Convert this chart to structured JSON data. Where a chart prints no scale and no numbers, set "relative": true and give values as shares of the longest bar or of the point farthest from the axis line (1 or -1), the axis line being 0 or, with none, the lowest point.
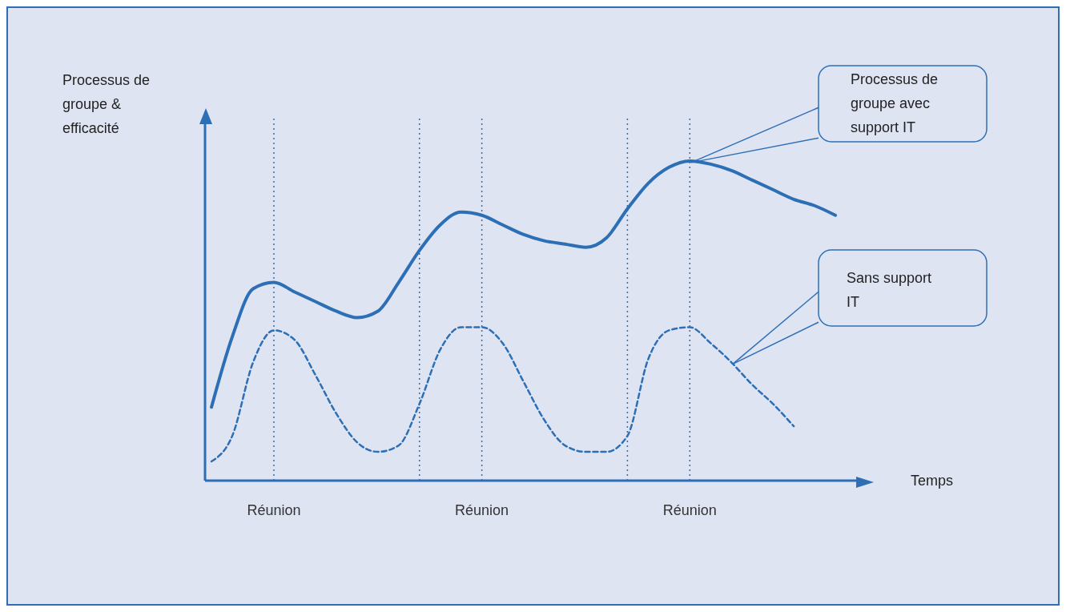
{
  "chart_data": {
    "type": "line",
    "relative": true,
    "xlabel": "Temps",
    "ylabel": "Processus de groupe & efficacité",
    "marker": "none",
    "categories": [
      null,
      null,
      null,
      "Réunion",
      null,
      null,
      null,
      null,
      null,
      null,
      null,
      null,
      null,
      "Réunion",
      null,
      null,
      null,
      null,
      null,
      null,
      null,
      null,
      null,
      "Réunion",
      null,
      null,
      null,
      null,
      null,
      null,
      null
    ],
    "grid": "x",
    "series": [
      {
        "name": "Processus de groupe avec support IT",
        "color": "#2d6fb5",
        "line_style": "solid",
        "values": [
          0.23,
          0.45,
          0.6,
          0.62,
          0.59,
          0.56,
          0.53,
          0.51,
          0.53,
          0.62,
          0.72,
          0.8,
          0.84,
          0.83,
          0.8,
          0.77,
          0.75,
          0.74,
          0.73,
          0.76,
          0.85,
          0.93,
          0.98,
          1,
          0.99,
          0.97,
          0.94,
          0.91,
          0.88,
          0.86,
          0.83
        ]
      },
      {
        "name": "Sans support IT",
        "color": "#2d6fb5",
        "line_style": "dashed",
        "values": [
          0.06,
          0.14,
          0.37,
          0.47,
          0.44,
          0.33,
          0.21,
          0.12,
          0.09,
          0.11,
          0.24,
          0.41,
          0.48,
          0.48,
          0.43,
          0.31,
          0.19,
          0.11,
          0.09,
          0.09,
          0.14,
          0.38,
          0.47,
          0.48,
          0.43,
          0.37,
          0.3,
          0.24,
          0.17,
          null,
          null
        ]
      }
    ]
  }
}
